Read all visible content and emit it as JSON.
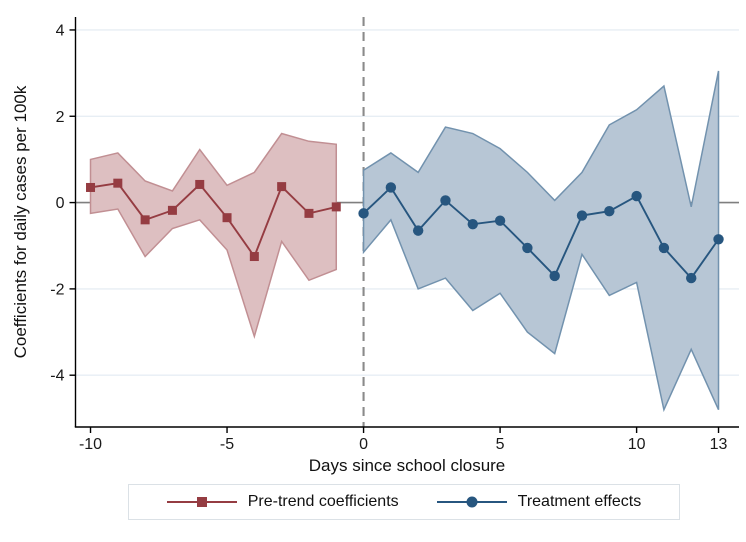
{
  "figure": {
    "background": "#ffffff"
  },
  "axes": {
    "y_title": "Coefficients for daily cases per 100k",
    "x_title": "Days since school closure",
    "x_tick_labels": [
      "-10",
      "-5",
      "0",
      "5",
      "10",
      "13"
    ],
    "y_tick_labels": [
      "4",
      "2",
      "0",
      "-2",
      "-4"
    ]
  },
  "legend": {
    "position": "bottom-center",
    "items": [
      {
        "label": "Pre-trend coefficients",
        "marker": "square",
        "color": "#953c42"
      },
      {
        "label": "Treatment effects",
        "marker": "circle",
        "color": "#27567f"
      }
    ]
  },
  "chart_data": {
    "type": "line",
    "title": "",
    "xlabel": "Days since school closure",
    "ylabel": "Coefficients for daily cases per 100k",
    "xlim": [
      -10.55,
      13.75
    ],
    "ylim": [
      -5.2,
      4.3
    ],
    "x_ticks": [
      -10,
      -5,
      0,
      5,
      10,
      13
    ],
    "y_ticks": [
      4,
      2,
      0,
      -2,
      -4
    ],
    "grid": "horizontal-at-yticks-except-zero",
    "legend_position": "bottom",
    "reference": {
      "zero_line_y": 0,
      "event_dashed_line_x": 0
    },
    "style": {
      "grid_color": "#e7eef4",
      "zero_line_color": "#7f7f7f",
      "event_line_color": "#8a8a8a",
      "axis_color": "#000000",
      "text_color": "#1a1a1a"
    },
    "series": [
      {
        "name": "Pre-trend coefficients",
        "kind": "line-with-ci-band",
        "marker": "square",
        "line_color": "#953c42",
        "band_fill": "#ddbfc1",
        "band_stroke": "#c18f93",
        "x": [
          -10,
          -9,
          -8,
          -7,
          -6,
          -5,
          -4,
          -3,
          -2,
          -1
        ],
        "y": [
          0.35,
          0.45,
          -0.4,
          -0.18,
          0.42,
          -0.35,
          -1.25,
          0.37,
          -0.25,
          -0.1
        ],
        "ci_upper": [
          1.0,
          1.15,
          0.5,
          0.27,
          1.23,
          0.4,
          0.7,
          1.6,
          1.42,
          1.35
        ],
        "ci_lower": [
          -0.25,
          -0.15,
          -1.25,
          -0.6,
          -0.4,
          -1.1,
          -3.1,
          -0.9,
          -1.8,
          -1.55
        ]
      },
      {
        "name": "Treatment effects",
        "kind": "line-with-ci-band",
        "marker": "circle",
        "line_color": "#27567f",
        "band_fill": "#b7c6d5",
        "band_stroke": "#7292ae",
        "x": [
          0,
          1,
          2,
          3,
          4,
          5,
          6,
          7,
          8,
          9,
          10,
          11,
          12,
          13
        ],
        "y": [
          -0.25,
          0.35,
          -0.65,
          0.05,
          -0.5,
          -0.42,
          -1.05,
          -1.7,
          -0.3,
          -0.2,
          0.15,
          -1.05,
          -1.75,
          -0.85
        ],
        "ci_upper": [
          0.75,
          1.15,
          0.7,
          1.75,
          1.6,
          1.25,
          0.7,
          0.05,
          0.7,
          1.8,
          2.15,
          2.7,
          -0.1,
          3.05
        ],
        "ci_lower": [
          -1.15,
          -0.4,
          -2.0,
          -1.75,
          -2.5,
          -2.1,
          -3.0,
          -3.5,
          -1.2,
          -2.15,
          -1.85,
          -4.8,
          -3.4,
          -4.8
        ]
      }
    ]
  }
}
